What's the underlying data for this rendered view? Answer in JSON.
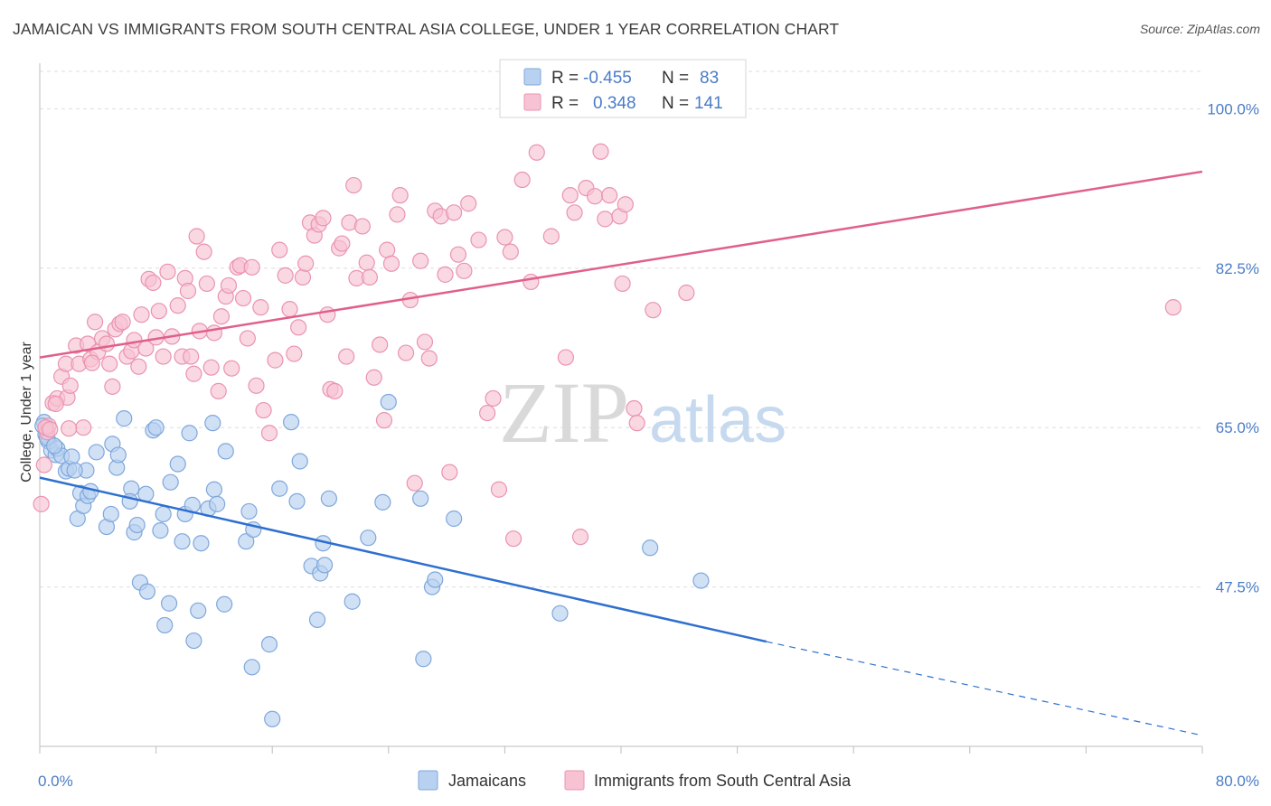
{
  "title": "JAMAICAN VS IMMIGRANTS FROM SOUTH CENTRAL ASIA COLLEGE, UNDER 1 YEAR CORRELATION CHART",
  "source": "Source: ZipAtlas.com",
  "watermark": {
    "zip": "ZIP",
    "atlas": "atlas"
  },
  "legend_top": {
    "rows": [
      {
        "r_label": "R =",
        "r_value": "-0.455",
        "n_label": "N =",
        "n_value": "83"
      },
      {
        "r_label": "R =",
        "r_value": "0.348",
        "n_label": "N =",
        "n_value": "141"
      }
    ]
  },
  "colors": {
    "blue_fill": "#b8d1f0",
    "blue_stroke": "#7fa7dc",
    "blue_line": "#2e6fcf",
    "pink_fill": "#f7c3d3",
    "pink_stroke": "#ea93b0",
    "pink_line": "#e0608a",
    "tick_text": "#4a7cc7",
    "grid": "#dddddd"
  },
  "chart_data": {
    "type": "scatter",
    "title": "JAMAICAN VS IMMIGRANTS FROM SOUTH CENTRAL ASIA COLLEGE, UNDER 1 YEAR CORRELATION CHART",
    "xlabel": "",
    "ylabel": "College, Under 1 year",
    "xlim": [
      0,
      80
    ],
    "ylim": [
      30,
      105
    ],
    "x_tick_labels": [
      "0.0%",
      "80.0%"
    ],
    "y_ticks": [
      47.5,
      65.0,
      82.5,
      100.0
    ],
    "y_tick_labels": [
      "47.5%",
      "65.0%",
      "82.5%",
      "100.0%"
    ],
    "grid": true,
    "legend_position": "top-center",
    "series": [
      {
        "name": "Jamaicans",
        "r": -0.455,
        "n": 83,
        "trend": {
          "x0": 0,
          "y0": 59.5,
          "x1": 50,
          "y1": 41.5,
          "dashed_to_x": 80,
          "dashed_to_y": 31.2
        },
        "points": [
          [
            0.3,
            65.6
          ],
          [
            0.4,
            64.2
          ],
          [
            0.6,
            63.5
          ],
          [
            0.8,
            62.5
          ],
          [
            1.1,
            62.0
          ],
          [
            1.2,
            62.7
          ],
          [
            1.5,
            61.9
          ],
          [
            1.8,
            60.2
          ],
          [
            2.0,
            60.5
          ],
          [
            2.2,
            61.8
          ],
          [
            2.6,
            55.0
          ],
          [
            2.8,
            57.8
          ],
          [
            3.0,
            56.4
          ],
          [
            3.2,
            60.3
          ],
          [
            3.3,
            57.5
          ],
          [
            3.5,
            58.0
          ],
          [
            3.9,
            62.3
          ],
          [
            4.6,
            54.1
          ],
          [
            4.9,
            55.5
          ],
          [
            5.0,
            63.2
          ],
          [
            5.3,
            60.6
          ],
          [
            5.4,
            62.0
          ],
          [
            5.8,
            66.0
          ],
          [
            6.3,
            58.3
          ],
          [
            6.2,
            56.9
          ],
          [
            6.5,
            53.5
          ],
          [
            6.7,
            54.3
          ],
          [
            6.9,
            48.0
          ],
          [
            7.3,
            57.7
          ],
          [
            7.4,
            47.0
          ],
          [
            7.8,
            64.7
          ],
          [
            8.0,
            65.0
          ],
          [
            8.3,
            53.7
          ],
          [
            8.5,
            55.5
          ],
          [
            8.6,
            43.3
          ],
          [
            8.9,
            45.7
          ],
          [
            9.0,
            59.0
          ],
          [
            9.5,
            61.0
          ],
          [
            9.8,
            52.5
          ],
          [
            10.0,
            55.5
          ],
          [
            10.3,
            64.4
          ],
          [
            10.5,
            56.5
          ],
          [
            10.6,
            41.6
          ],
          [
            10.9,
            44.9
          ],
          [
            11.1,
            52.3
          ],
          [
            11.6,
            56.1
          ],
          [
            11.9,
            65.5
          ],
          [
            12.0,
            58.2
          ],
          [
            12.2,
            56.6
          ],
          [
            12.7,
            45.6
          ],
          [
            12.8,
            62.4
          ],
          [
            14.2,
            52.5
          ],
          [
            14.4,
            55.8
          ],
          [
            14.7,
            53.8
          ],
          [
            14.6,
            38.7
          ],
          [
            15.8,
            41.2
          ],
          [
            16.0,
            33.0
          ],
          [
            16.5,
            58.3
          ],
          [
            17.3,
            65.6
          ],
          [
            17.7,
            56.9
          ],
          [
            17.9,
            61.3
          ],
          [
            18.7,
            49.8
          ],
          [
            19.1,
            43.9
          ],
          [
            19.3,
            49.0
          ],
          [
            19.5,
            52.3
          ],
          [
            19.6,
            49.9
          ],
          [
            19.9,
            57.2
          ],
          [
            21.5,
            45.9
          ],
          [
            22.6,
            52.9
          ],
          [
            23.6,
            56.8
          ],
          [
            24.0,
            67.8
          ],
          [
            26.2,
            57.2
          ],
          [
            26.4,
            39.6
          ],
          [
            27.0,
            47.5
          ],
          [
            27.2,
            48.3
          ],
          [
            28.5,
            55.0
          ],
          [
            35.8,
            44.6
          ],
          [
            42.0,
            51.8
          ],
          [
            45.5,
            48.2
          ],
          [
            0.2,
            65.2
          ],
          [
            0.5,
            63.9
          ],
          [
            1.0,
            63.0
          ],
          [
            2.4,
            60.3
          ]
        ]
      },
      {
        "name": "Immigrants from South Central Asia",
        "r": 0.348,
        "n": 141,
        "trend": {
          "x0": 0,
          "y0": 72.7,
          "x1": 80,
          "y1": 93.1
        },
        "points": [
          [
            0.1,
            56.6
          ],
          [
            0.3,
            60.9
          ],
          [
            0.5,
            64.5
          ],
          [
            0.6,
            65.2
          ],
          [
            0.9,
            67.7
          ],
          [
            1.2,
            68.2
          ],
          [
            1.5,
            70.6
          ],
          [
            1.8,
            72.0
          ],
          [
            1.9,
            68.3
          ],
          [
            2.1,
            69.6
          ],
          [
            2.5,
            74.0
          ],
          [
            2.7,
            72.0
          ],
          [
            3.0,
            65.0
          ],
          [
            3.3,
            74.2
          ],
          [
            3.5,
            72.5
          ],
          [
            3.8,
            76.6
          ],
          [
            4.0,
            73.3
          ],
          [
            4.3,
            74.8
          ],
          [
            4.6,
            74.2
          ],
          [
            4.8,
            72.0
          ],
          [
            5.0,
            69.5
          ],
          [
            5.2,
            75.8
          ],
          [
            5.5,
            76.4
          ],
          [
            5.7,
            76.6
          ],
          [
            6.0,
            72.8
          ],
          [
            6.3,
            73.4
          ],
          [
            6.5,
            74.6
          ],
          [
            6.8,
            71.7
          ],
          [
            7.0,
            77.4
          ],
          [
            7.3,
            73.7
          ],
          [
            7.5,
            81.3
          ],
          [
            7.8,
            80.9
          ],
          [
            8.0,
            74.9
          ],
          [
            8.2,
            77.8
          ],
          [
            8.5,
            72.8
          ],
          [
            8.8,
            82.1
          ],
          [
            9.1,
            75.0
          ],
          [
            9.5,
            78.4
          ],
          [
            9.8,
            72.8
          ],
          [
            10.0,
            81.4
          ],
          [
            10.2,
            80.0
          ],
          [
            10.4,
            72.8
          ],
          [
            10.6,
            70.9
          ],
          [
            10.8,
            86.0
          ],
          [
            11.0,
            75.6
          ],
          [
            11.3,
            84.3
          ],
          [
            11.5,
            80.8
          ],
          [
            11.8,
            71.6
          ],
          [
            12.0,
            75.4
          ],
          [
            12.3,
            69.0
          ],
          [
            12.5,
            77.2
          ],
          [
            12.8,
            79.4
          ],
          [
            13.0,
            80.6
          ],
          [
            13.2,
            71.5
          ],
          [
            13.6,
            82.6
          ],
          [
            13.8,
            82.8
          ],
          [
            14.0,
            79.2
          ],
          [
            14.3,
            74.8
          ],
          [
            14.6,
            82.6
          ],
          [
            14.9,
            69.6
          ],
          [
            15.2,
            78.2
          ],
          [
            15.4,
            66.9
          ],
          [
            15.8,
            64.4
          ],
          [
            16.2,
            72.4
          ],
          [
            16.5,
            84.5
          ],
          [
            16.9,
            81.7
          ],
          [
            17.2,
            78.0
          ],
          [
            17.5,
            73.1
          ],
          [
            17.8,
            76.0
          ],
          [
            18.1,
            81.5
          ],
          [
            18.3,
            83.0
          ],
          [
            18.6,
            87.5
          ],
          [
            18.9,
            86.1
          ],
          [
            19.2,
            87.3
          ],
          [
            19.5,
            88.0
          ],
          [
            19.8,
            77.4
          ],
          [
            20.0,
            69.2
          ],
          [
            20.3,
            69.0
          ],
          [
            20.6,
            84.7
          ],
          [
            20.8,
            85.2
          ],
          [
            21.1,
            72.8
          ],
          [
            21.3,
            87.5
          ],
          [
            21.6,
            91.6
          ],
          [
            21.8,
            81.4
          ],
          [
            22.2,
            87.1
          ],
          [
            22.5,
            83.1
          ],
          [
            22.7,
            81.5
          ],
          [
            23.0,
            70.5
          ],
          [
            23.4,
            74.1
          ],
          [
            23.7,
            65.8
          ],
          [
            23.9,
            84.5
          ],
          [
            24.2,
            83.0
          ],
          [
            24.6,
            88.4
          ],
          [
            24.8,
            90.5
          ],
          [
            25.2,
            73.2
          ],
          [
            25.5,
            79.0
          ],
          [
            25.8,
            58.9
          ],
          [
            26.2,
            83.3
          ],
          [
            26.5,
            74.4
          ],
          [
            26.8,
            72.6
          ],
          [
            27.2,
            88.8
          ],
          [
            27.6,
            88.2
          ],
          [
            27.9,
            81.8
          ],
          [
            28.2,
            60.1
          ],
          [
            28.5,
            88.6
          ],
          [
            28.8,
            84.0
          ],
          [
            29.2,
            82.2
          ],
          [
            29.5,
            89.6
          ],
          [
            30.2,
            85.6
          ],
          [
            30.8,
            66.6
          ],
          [
            31.2,
            68.2
          ],
          [
            31.6,
            58.2
          ],
          [
            32.0,
            85.9
          ],
          [
            32.4,
            84.3
          ],
          [
            32.6,
            52.8
          ],
          [
            33.2,
            92.2
          ],
          [
            33.8,
            81.0
          ],
          [
            34.2,
            95.2
          ],
          [
            35.2,
            86.0
          ],
          [
            36.2,
            72.7
          ],
          [
            36.5,
            90.5
          ],
          [
            36.8,
            88.6
          ],
          [
            37.2,
            53.0
          ],
          [
            37.6,
            91.3
          ],
          [
            38.2,
            90.4
          ],
          [
            38.6,
            95.3
          ],
          [
            38.9,
            87.9
          ],
          [
            39.2,
            90.5
          ],
          [
            39.9,
            88.2
          ],
          [
            40.1,
            80.8
          ],
          [
            40.3,
            89.5
          ],
          [
            40.9,
            67.1
          ],
          [
            41.1,
            65.5
          ],
          [
            42.2,
            77.9
          ],
          [
            44.5,
            79.8
          ],
          [
            78.0,
            78.2
          ],
          [
            2.0,
            64.9
          ],
          [
            0.4,
            65.0
          ],
          [
            0.7,
            64.8
          ],
          [
            1.1,
            67.6
          ],
          [
            3.6,
            72.1
          ]
        ]
      }
    ]
  },
  "bottom_legend": [
    {
      "label": "Jamaicans"
    },
    {
      "label": "Immigrants from South Central Asia"
    }
  ]
}
